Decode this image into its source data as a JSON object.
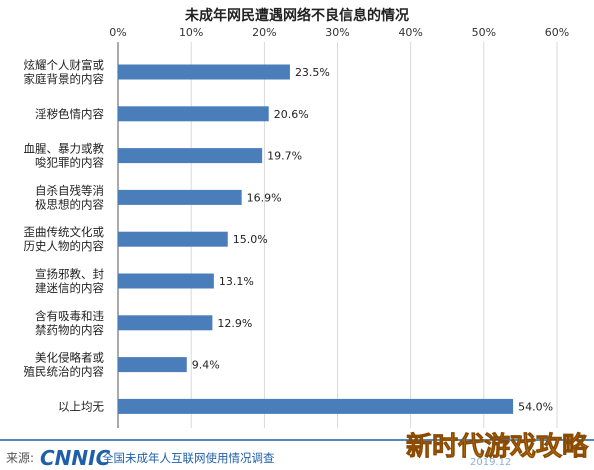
{
  "chart_data": {
    "type": "bar",
    "orientation": "horizontal",
    "title": "未成年网民遭遇网络不良信息的情况",
    "xlim": [
      0,
      60
    ],
    "ticks": [
      0,
      10,
      20,
      30,
      40,
      50,
      60
    ],
    "tick_suffix": "%",
    "grid": true,
    "bar_color": "#4a7ebb",
    "categories": [
      [
        "炫耀个人财富或",
        "家庭背景的内容"
      ],
      [
        "淫秽色情内容"
      ],
      [
        "血腥、暴力或教",
        "唆犯罪的内容"
      ],
      [
        "自杀自残等消",
        "极思想的内容"
      ],
      [
        "歪曲传统文化或",
        "历史人物的内容"
      ],
      [
        "宣扬邪教、封",
        "建迷信的内容"
      ],
      [
        "含有吸毒和违",
        "禁药物的内容"
      ],
      [
        "美化侵略者或",
        "殖民统治的内容"
      ],
      [
        "以上均无"
      ]
    ],
    "values": [
      23.5,
      20.6,
      19.7,
      16.9,
      15.0,
      13.1,
      12.9,
      9.4,
      54.0
    ],
    "value_labels": [
      "23.5%",
      "20.6%",
      "19.7%",
      "16.9%",
      "15.0%",
      "13.1%",
      "12.9%",
      "9.4%",
      "54.0%"
    ]
  },
  "footer": {
    "source_label": "来源:",
    "brand": "CNNIC",
    "report": "全国未成年人互联网使用情况调查",
    "date": "2019.12",
    "overlay": "新时代游戏攻略"
  }
}
